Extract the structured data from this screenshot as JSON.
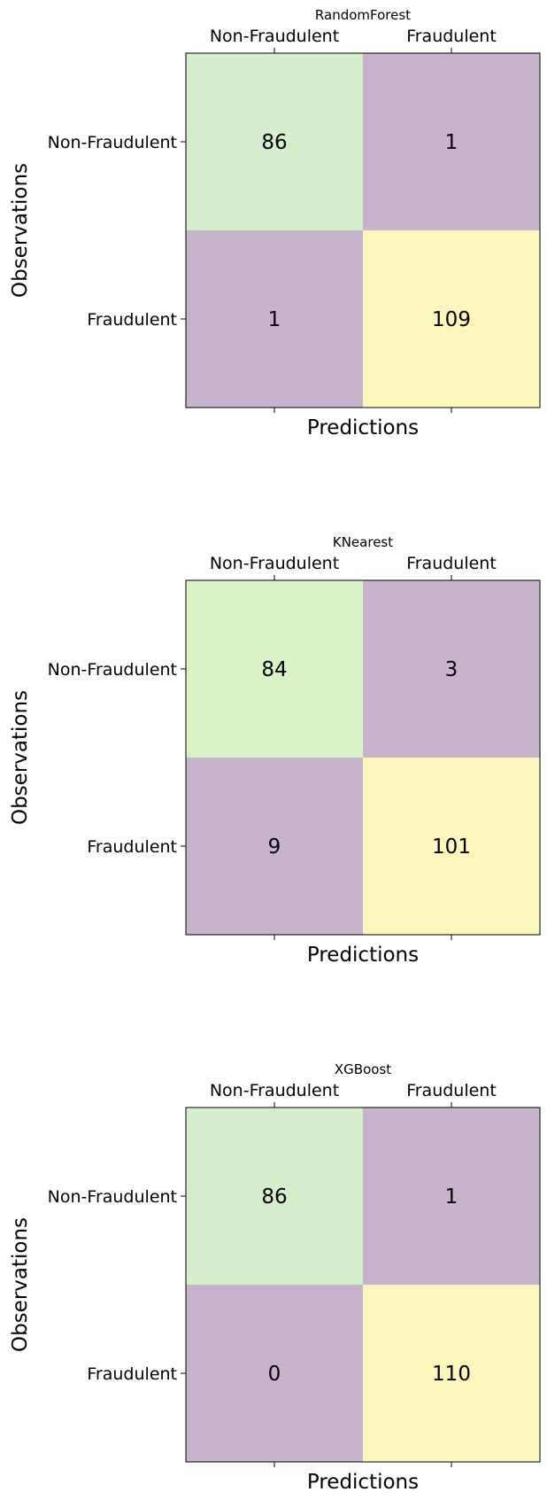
{
  "chart_data": [
    {
      "type": "heatmap",
      "title": "RandomForest",
      "xlabel": "Predictions",
      "ylabel": "Observations",
      "x_categories": [
        "Non-Fraudulent",
        "Fraudulent"
      ],
      "y_categories": [
        "Non-Fraudulent",
        "Fraudulent"
      ],
      "values": [
        [
          86,
          1
        ],
        [
          1,
          109
        ]
      ],
      "cell_colors": [
        [
          "#d4eecb",
          "#c7b3cc"
        ],
        [
          "#c7b3cc",
          "#fbf6bb"
        ]
      ]
    },
    {
      "type": "heatmap",
      "title": "KNearest",
      "xlabel": "Predictions",
      "ylabel": "Observations",
      "x_categories": [
        "Non-Fraudulent",
        "Fraudulent"
      ],
      "y_categories": [
        "Non-Fraudulent",
        "Fraudulent"
      ],
      "values": [
        [
          84,
          3
        ],
        [
          9,
          101
        ]
      ],
      "cell_colors": [
        [
          "#d9f2c6",
          "#c7b3cc"
        ],
        [
          "#c7b3cc",
          "#fbf6bb"
        ]
      ]
    },
    {
      "type": "heatmap",
      "title": "XGBoost",
      "xlabel": "Predictions",
      "ylabel": "Observations",
      "x_categories": [
        "Non-Fraudulent",
        "Fraudulent"
      ],
      "y_categories": [
        "Non-Fraudulent",
        "Fraudulent"
      ],
      "values": [
        [
          86,
          1
        ],
        [
          0,
          110
        ]
      ],
      "cell_colors": [
        [
          "#d4eecb",
          "#c7b3cc"
        ],
        [
          "#c7b3cc",
          "#fbf6bb"
        ]
      ]
    }
  ]
}
